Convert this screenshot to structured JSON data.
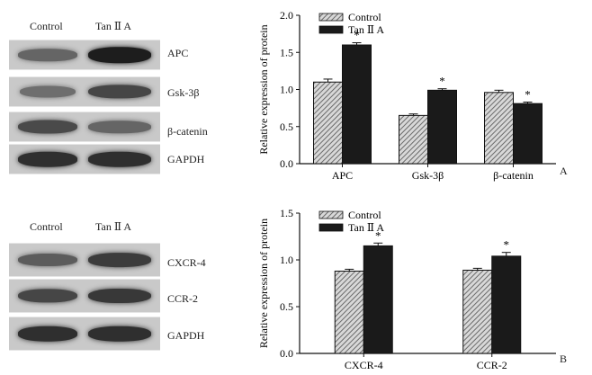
{
  "panel_a": {
    "letter": "A",
    "lanes": [
      "Control",
      "Tan Ⅱ A"
    ],
    "blots": [
      {
        "label": "APC",
        "intensity": [
          0.55,
          0.95
        ]
      },
      {
        "label": "Gsk-3β",
        "intensity": [
          0.5,
          0.72
        ]
      },
      {
        "label": "β-catenin",
        "intensity": [
          0.7,
          0.55
        ]
      },
      {
        "label": "GAPDH",
        "intensity": [
          0.85,
          0.85
        ]
      }
    ]
  },
  "panel_b": {
    "letter": "B",
    "lanes": [
      "Control",
      "Tan Ⅱ A"
    ],
    "blots": [
      {
        "label": "CXCR-4",
        "intensity": [
          0.6,
          0.78
        ]
      },
      {
        "label": "CCR-2",
        "intensity": [
          0.72,
          0.8
        ]
      },
      {
        "label": "GAPDH",
        "intensity": [
          0.85,
          0.85
        ]
      }
    ]
  },
  "chart_data": [
    {
      "type": "bar",
      "ylabel": "Relative expression of protein",
      "categories": [
        "APC",
        "Gsk-3β",
        "β-catenin"
      ],
      "ylim": [
        0,
        2.0
      ],
      "yticks": [
        "0.0",
        "0.5",
        "1.0",
        "1.5",
        "2.0"
      ],
      "series": [
        {
          "name": "Control",
          "values": [
            1.1,
            0.65,
            0.96
          ],
          "errors": [
            0.04,
            0.02,
            0.03
          ],
          "color": "#9a9a9a",
          "pattern": "hatched"
        },
        {
          "name": "Tan Ⅱ A",
          "values": [
            1.6,
            0.99,
            0.81
          ],
          "errors": [
            0.03,
            0.02,
            0.02
          ],
          "color": "#1a1a1a",
          "pattern": "solid"
        }
      ],
      "significance": [
        "*",
        "*",
        "*"
      ],
      "legend": "top-left"
    },
    {
      "type": "bar",
      "ylabel": "Relative expression of protein",
      "categories": [
        "CXCR-4",
        "CCR-2"
      ],
      "ylim": [
        0,
        1.5
      ],
      "yticks": [
        "0.0",
        "0.5",
        "1.0",
        "1.5"
      ],
      "series": [
        {
          "name": "Control",
          "values": [
            0.88,
            0.89
          ],
          "errors": [
            0.02,
            0.02
          ],
          "color": "#9a9a9a",
          "pattern": "hatched"
        },
        {
          "name": "Tan Ⅱ A",
          "values": [
            1.15,
            1.04
          ],
          "errors": [
            0.03,
            0.04
          ],
          "color": "#1a1a1a",
          "pattern": "solid"
        }
      ],
      "significance": [
        "*",
        "*"
      ],
      "legend": "top-left"
    }
  ]
}
